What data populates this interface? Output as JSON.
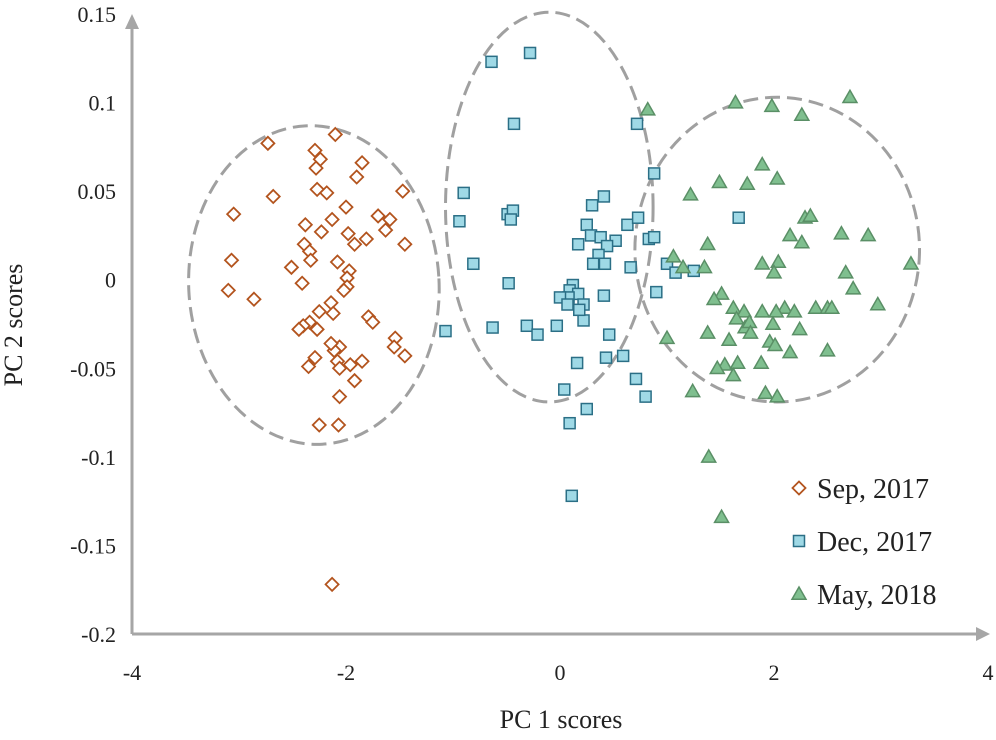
{
  "chart_data": {
    "type": "scatter",
    "title": "",
    "xlabel": "PC 1 scores",
    "ylabel": "PC 2 scores",
    "xlim": [
      -4,
      4
    ],
    "ylim": [
      -0.2,
      0.15
    ],
    "x_ticks": [
      "-4",
      "-2",
      "0",
      "2",
      "4"
    ],
    "y_ticks": [
      "0.15",
      "0.1",
      "0.05",
      "0",
      "-0.05",
      "-0.1",
      "-0.15",
      "-0.2"
    ],
    "grid": false,
    "legend_position": "bottom-right",
    "series": [
      {
        "name": "Sep, 2017",
        "marker": "diamond",
        "color": "#c0632a",
        "points": [
          [
            -2.73,
            0.077
          ],
          [
            -2.1,
            0.082
          ],
          [
            -2.29,
            0.073
          ],
          [
            -2.24,
            0.068
          ],
          [
            -1.85,
            0.066
          ],
          [
            -2.28,
            0.063
          ],
          [
            -1.9,
            0.058
          ],
          [
            -2.27,
            0.051
          ],
          [
            -2.18,
            0.049
          ],
          [
            -2.68,
            0.047
          ],
          [
            -1.47,
            0.05
          ],
          [
            -3.05,
            0.037
          ],
          [
            -2.0,
            0.041
          ],
          [
            -1.7,
            0.036
          ],
          [
            -2.13,
            0.034
          ],
          [
            -1.59,
            0.034
          ],
          [
            -2.38,
            0.031
          ],
          [
            -1.63,
            0.028
          ],
          [
            -1.81,
            0.023
          ],
          [
            -2.23,
            0.027
          ],
          [
            -1.98,
            0.026
          ],
          [
            -2.39,
            0.02
          ],
          [
            -1.92,
            0.02
          ],
          [
            -1.45,
            0.02
          ],
          [
            -2.34,
            0.016
          ],
          [
            -3.07,
            0.011
          ],
          [
            -2.51,
            0.007
          ],
          [
            -2.33,
            0.011
          ],
          [
            -2.08,
            0.01
          ],
          [
            -1.97,
            0.005
          ],
          [
            -1.99,
            0.001
          ],
          [
            -2.41,
            -0.002
          ],
          [
            -3.1,
            -0.006
          ],
          [
            -1.99,
            -0.004
          ],
          [
            -2.02,
            -0.006
          ],
          [
            -2.86,
            -0.011
          ],
          [
            -2.14,
            -0.013
          ],
          [
            -2.25,
            -0.018
          ],
          [
            -1.79,
            -0.021
          ],
          [
            -1.75,
            -0.024
          ],
          [
            -2.12,
            -0.019
          ],
          [
            -2.34,
            -0.024
          ],
          [
            -2.4,
            -0.026
          ],
          [
            -2.44,
            -0.028
          ],
          [
            -2.27,
            -0.028
          ],
          [
            -1.54,
            -0.033
          ],
          [
            -1.55,
            -0.038
          ],
          [
            -2.06,
            -0.038
          ],
          [
            -2.11,
            -0.04
          ],
          [
            -2.14,
            -0.036
          ],
          [
            -2.29,
            -0.044
          ],
          [
            -1.85,
            -0.046
          ],
          [
            -2.08,
            -0.046
          ],
          [
            -1.45,
            -0.043
          ],
          [
            -1.96,
            -0.048
          ],
          [
            -2.06,
            -0.05
          ],
          [
            -2.35,
            -0.049
          ],
          [
            -1.92,
            -0.057
          ],
          [
            -2.06,
            -0.066
          ],
          [
            -2.25,
            -0.082
          ],
          [
            -2.07,
            -0.082
          ],
          [
            -2.13,
            -0.172
          ]
        ]
      },
      {
        "name": "Dec, 2017",
        "marker": "square",
        "color": "#9fd9e6",
        "points": [
          [
            -0.64,
            0.123
          ],
          [
            -0.28,
            0.128
          ],
          [
            -0.43,
            0.088
          ],
          [
            0.72,
            0.088
          ],
          [
            0.88,
            0.06
          ],
          [
            -0.9,
            0.049
          ],
          [
            -0.49,
            0.037
          ],
          [
            -0.44,
            0.039
          ],
          [
            0.41,
            0.047
          ],
          [
            0.3,
            0.042
          ],
          [
            -0.46,
            0.034
          ],
          [
            -0.94,
            0.033
          ],
          [
            0.63,
            0.031
          ],
          [
            0.73,
            0.035
          ],
          [
            0.25,
            0.031
          ],
          [
            0.29,
            0.025
          ],
          [
            0.38,
            0.024
          ],
          [
            0.52,
            0.022
          ],
          [
            0.83,
            0.023
          ],
          [
            0.17,
            0.02
          ],
          [
            0.44,
            0.019
          ],
          [
            0.36,
            0.014
          ],
          [
            0.42,
            0.009
          ],
          [
            0.31,
            0.009
          ],
          [
            1.0,
            0.009
          ],
          [
            -0.81,
            0.009
          ],
          [
            0.66,
            0.007
          ],
          [
            1.25,
            0.005
          ],
          [
            1.08,
            0.004
          ],
          [
            0.12,
            -0.003
          ],
          [
            0.09,
            -0.006
          ],
          [
            -0.48,
            -0.002
          ],
          [
            0.17,
            -0.008
          ],
          [
            0.08,
            -0.01
          ],
          [
            0.0,
            -0.01
          ],
          [
            0.9,
            -0.007
          ],
          [
            0.41,
            -0.009
          ],
          [
            0.22,
            -0.014
          ],
          [
            -1.07,
            -0.029
          ],
          [
            -0.63,
            -0.027
          ],
          [
            -0.31,
            -0.026
          ],
          [
            0.07,
            -0.014
          ],
          [
            -0.21,
            -0.031
          ],
          [
            -0.03,
            -0.026
          ],
          [
            0.22,
            -0.023
          ],
          [
            0.18,
            -0.017
          ],
          [
            0.46,
            -0.031
          ],
          [
            0.16,
            -0.047
          ],
          [
            0.43,
            -0.044
          ],
          [
            0.59,
            -0.043
          ],
          [
            0.71,
            -0.056
          ],
          [
            0.04,
            -0.062
          ],
          [
            0.8,
            -0.066
          ],
          [
            0.25,
            -0.073
          ],
          [
            0.09,
            -0.081
          ],
          [
            0.11,
            -0.122
          ],
          [
            1.67,
            0.035
          ],
          [
            0.88,
            0.024
          ]
        ]
      },
      {
        "name": "May, 2018",
        "marker": "triangle",
        "color": "#7fbf8f",
        "points": [
          [
            0.82,
            0.096
          ],
          [
            1.64,
            0.1
          ],
          [
            1.98,
            0.098
          ],
          [
            2.26,
            0.093
          ],
          [
            2.71,
            0.103
          ],
          [
            1.75,
            0.054
          ],
          [
            1.89,
            0.065
          ],
          [
            2.03,
            0.057
          ],
          [
            1.22,
            0.048
          ],
          [
            1.49,
            0.055
          ],
          [
            2.29,
            0.035
          ],
          [
            2.34,
            0.036
          ],
          [
            2.15,
            0.025
          ],
          [
            2.63,
            0.026
          ],
          [
            2.88,
            0.025
          ],
          [
            1.38,
            0.02
          ],
          [
            2.26,
            0.021
          ],
          [
            2.04,
            0.01
          ],
          [
            3.28,
            0.009
          ],
          [
            1.06,
            0.013
          ],
          [
            1.15,
            0.007
          ],
          [
            1.35,
            0.007
          ],
          [
            1.89,
            0.009
          ],
          [
            2.0,
            0.004
          ],
          [
            2.67,
            0.004
          ],
          [
            2.74,
            -0.005
          ],
          [
            1.51,
            -0.008
          ],
          [
            1.44,
            -0.011
          ],
          [
            1.62,
            -0.016
          ],
          [
            1.72,
            -0.018
          ],
          [
            1.89,
            -0.018
          ],
          [
            2.1,
            -0.016
          ],
          [
            2.39,
            -0.016
          ],
          [
            2.97,
            -0.014
          ],
          [
            1.65,
            -0.022
          ],
          [
            2.02,
            -0.018
          ],
          [
            2.19,
            -0.018
          ],
          [
            2.5,
            -0.016
          ],
          [
            2.54,
            -0.016
          ],
          [
            1.73,
            -0.027
          ],
          [
            1.77,
            -0.024
          ],
          [
            1.99,
            -0.025
          ],
          [
            2.24,
            -0.028
          ],
          [
            1.0,
            -0.033
          ],
          [
            1.38,
            -0.03
          ],
          [
            1.58,
            -0.034
          ],
          [
            1.78,
            -0.03
          ],
          [
            1.96,
            -0.035
          ],
          [
            2.01,
            -0.037
          ],
          [
            2.15,
            -0.041
          ],
          [
            2.5,
            -0.04
          ],
          [
            1.54,
            -0.048
          ],
          [
            1.66,
            -0.047
          ],
          [
            1.47,
            -0.05
          ],
          [
            1.62,
            -0.054
          ],
          [
            1.88,
            -0.047
          ],
          [
            1.24,
            -0.063
          ],
          [
            1.92,
            -0.064
          ],
          [
            2.03,
            -0.066
          ],
          [
            1.39,
            -0.1
          ],
          [
            1.51,
            -0.134
          ]
        ]
      }
    ],
    "ellipses": [
      {
        "series": "Sep, 2017",
        "cx": -2.3,
        "cy": -0.003,
        "rx": 1.17,
        "ry": 0.09,
        "rotation_deg": -3
      },
      {
        "series": "Dec, 2017",
        "cx": -0.1,
        "cy": 0.041,
        "rx": 0.97,
        "ry": 0.11,
        "rotation_deg": 0
      },
      {
        "series": "May, 2018",
        "cx": 2.03,
        "cy": 0.017,
        "rx": 1.33,
        "ry": 0.086,
        "rotation_deg": 0
      }
    ]
  }
}
